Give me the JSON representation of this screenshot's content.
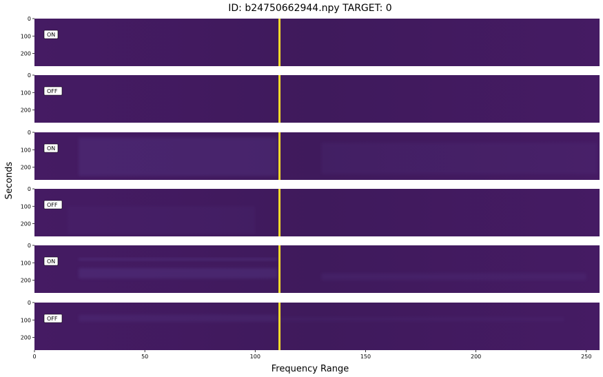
{
  "chart_data": {
    "type": "heatmap",
    "title": "ID: b24750662944.npy TARGET: 0",
    "xlabel": "Frequency Range",
    "ylabel": "Seconds",
    "xlim": [
      0,
      256
    ],
    "ylim": [
      273,
      0
    ],
    "x_ticks": [
      "0",
      "50",
      "100",
      "150",
      "200",
      "250"
    ],
    "y_ticks": [
      "0",
      "100",
      "200"
    ],
    "signal_line_x": 111,
    "colors": {
      "background": "#451b63",
      "background_dark": "#3f1a5c",
      "signal": "#f5dc2a",
      "haze": "#5a3f90"
    },
    "panels": [
      {
        "label": "ON"
      },
      {
        "label": "OFF"
      },
      {
        "label": "ON"
      },
      {
        "label": "OFF"
      },
      {
        "label": "ON"
      },
      {
        "label": "OFF"
      }
    ]
  }
}
